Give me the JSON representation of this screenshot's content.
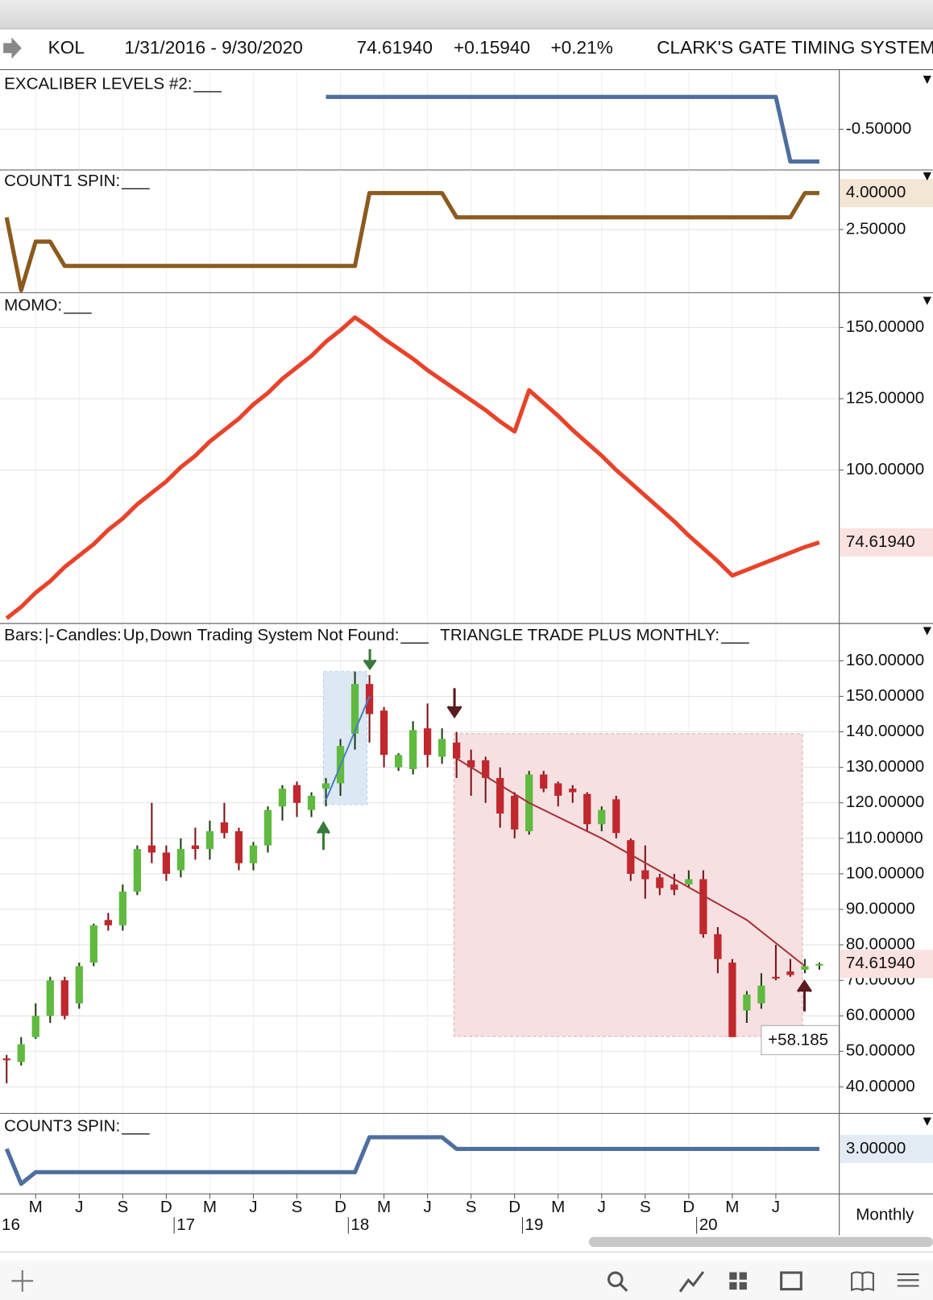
{
  "header": {
    "symbol": "KOL",
    "range": "1/31/2016 - 9/30/2020",
    "last": "74.61940",
    "change": "+0.15940",
    "change_pct": "+0.21%",
    "system": "CLARK'S GATE TIMING SYSTEM"
  },
  "chart_data": [
    {
      "type": "line",
      "title": "EXCALIBER LEVELS #2:",
      "series": [
        {
          "name": "___",
          "color": "#4e6f9e",
          "values": [
            null,
            null,
            null,
            null,
            null,
            null,
            null,
            null,
            null,
            null,
            null,
            null,
            null,
            null,
            null,
            null,
            null,
            null,
            null,
            null,
            null,
            null,
            0,
            0,
            0,
            0,
            0,
            0,
            0,
            0,
            0,
            0,
            0,
            0,
            0,
            0,
            0,
            0,
            0,
            0,
            0,
            0,
            0,
            0,
            0,
            0,
            0,
            0,
            0,
            0,
            0,
            0,
            0,
            0,
            -1,
            -1,
            -1
          ]
        }
      ],
      "ylim": [
        -1.13,
        0.37
      ],
      "yticks": [
        {
          "value": -0.5,
          "label": "-0.50000"
        }
      ]
    },
    {
      "type": "line",
      "title": "COUNT1 SPIN:",
      "series": [
        {
          "name": "___",
          "color": "#8b5a1e",
          "values": [
            3,
            0,
            2,
            2,
            1,
            1,
            1,
            1,
            1,
            1,
            1,
            1,
            1,
            1,
            1,
            1,
            1,
            1,
            1,
            1,
            1,
            1,
            1,
            1,
            1,
            4,
            4,
            4,
            4,
            4,
            4,
            3,
            3,
            3,
            3,
            3,
            3,
            3,
            3,
            3,
            3,
            3,
            3,
            3,
            3,
            3,
            3,
            3,
            3,
            3,
            3,
            3,
            3,
            3,
            3,
            4,
            4
          ]
        }
      ],
      "ylim": [
        -0.1,
        4.95
      ],
      "yticks": [
        {
          "value": 2.5,
          "label": "2.50000"
        }
      ],
      "last_value": {
        "value": 4,
        "label": "4.00000",
        "color": "#f4e6d4"
      }
    },
    {
      "type": "line",
      "title": "MOMO:",
      "series": [
        {
          "name": "___",
          "color": "#e8432a",
          "values": [
            48,
            52,
            57,
            61,
            66,
            70,
            74,
            79,
            83,
            88,
            92,
            96,
            101,
            105,
            110,
            114,
            118,
            123,
            127,
            132,
            136,
            140,
            145,
            149,
            153.5,
            150,
            146,
            142.5,
            139,
            135,
            131.5,
            128,
            124.5,
            121,
            117,
            113.5,
            128,
            123.5,
            119,
            114,
            109.5,
            105,
            100,
            95.5,
            91,
            86.5,
            82,
            77,
            72.5,
            68,
            63,
            65,
            67,
            69,
            71,
            73,
            74.6194
          ]
        }
      ],
      "ylim": [
        46.2,
        161.6
      ],
      "yticks": [
        {
          "value": 150,
          "label": "150.00000"
        },
        {
          "value": 125,
          "label": "125.00000"
        },
        {
          "value": 100,
          "label": "100.00000"
        }
      ],
      "last_value": {
        "value": 74.6194,
        "label": "74.61940",
        "color": "#fbe1df"
      }
    },
    {
      "type": "candlestick",
      "legend": [
        "Bars:",
        "|-",
        "Candles:",
        "Up",
        ",",
        "Down",
        "Trading System Not Found:",
        "___",
        "TRIANGLE TRADE PLUS MONTHLY:",
        "___"
      ],
      "up_color": "#5fba3f",
      "down_color": "#c0282d",
      "open": [
        48,
        47,
        54,
        60,
        70,
        63.5,
        75,
        87,
        85.5,
        95,
        108,
        106,
        101,
        108,
        107,
        114.5,
        112,
        103,
        108,
        119,
        125,
        118,
        124,
        125.5,
        139.5,
        153.5,
        146,
        130,
        129.5,
        141,
        133,
        137,
        132,
        132,
        127,
        122,
        112,
        128,
        125.5,
        124,
        122.5,
        114,
        121,
        109.5,
        101,
        99,
        97,
        97,
        98.5,
        83,
        75,
        61.5,
        63.5,
        71,
        72.5,
        73,
        74.5
      ],
      "high": [
        49,
        54,
        63.5,
        71,
        71,
        75,
        86,
        89,
        97,
        108,
        120,
        108,
        110,
        113,
        115,
        120,
        113,
        109,
        119,
        125,
        126,
        123,
        127,
        138,
        157,
        156,
        147,
        134,
        143,
        148,
        141,
        140,
        135,
        133,
        130,
        123,
        129,
        129,
        126,
        125,
        123,
        119,
        122,
        110,
        108,
        100,
        100,
        101,
        101,
        85,
        76,
        67,
        72,
        80,
        76,
        76,
        75
      ],
      "low": [
        41,
        46,
        53.5,
        58,
        59,
        62,
        74,
        84,
        84,
        94,
        103,
        98,
        99,
        104,
        104,
        110,
        101,
        101,
        106,
        115,
        116,
        116,
        119,
        122,
        135,
        137,
        130,
        129,
        128,
        130,
        131,
        127,
        122,
        120,
        113,
        110,
        111,
        123,
        119,
        120,
        112,
        112,
        110,
        98,
        93,
        94,
        94,
        96,
        82,
        72,
        54,
        58,
        62,
        70,
        71,
        72,
        73
      ],
      "close": [
        47.5,
        52,
        60,
        70,
        60,
        74,
        85.5,
        85.5,
        95,
        107,
        106,
        100,
        107,
        107,
        112,
        111.5,
        103,
        108,
        118,
        124,
        120,
        122,
        125.5,
        136,
        153.5,
        145,
        133.5,
        133.5,
        140.5,
        133.5,
        138,
        132.5,
        130,
        127,
        117,
        112.5,
        128,
        124,
        122,
        123,
        114,
        118,
        111.5,
        100,
        98.5,
        96,
        95.5,
        98.5,
        83,
        76,
        54,
        66,
        68.5,
        70.5,
        71.5,
        74,
        74.6194
      ],
      "zones": [
        {
          "from": 22,
          "to": 25,
          "high": 157,
          "low": 119.5,
          "color": "#dde8f5"
        },
        {
          "from": 31,
          "to": 55,
          "high": 139.5,
          "low": 54.2,
          "color": "#f6e0e2",
          "label": "+58.185"
        }
      ],
      "overlays": [
        {
          "color": "#4a7fc0",
          "x": [
            22,
            25
          ],
          "values": [
            120.8,
            150
          ]
        },
        {
          "color": "#a83238",
          "x": [
            31,
            36,
            41,
            46,
            51,
            55
          ],
          "values": [
            132.5,
            120,
            110,
            98.5,
            87,
            74
          ]
        }
      ],
      "ylim": [
        32.5,
        170.3
      ],
      "yticks": [
        {
          "value": 160,
          "label": "160.00000"
        },
        {
          "value": 150,
          "label": "150.00000"
        },
        {
          "value": 140,
          "label": "140.00000"
        },
        {
          "value": 130,
          "label": "130.00000"
        },
        {
          "value": 120,
          "label": "120.00000"
        },
        {
          "value": 110,
          "label": "110.00000"
        },
        {
          "value": 100,
          "label": "100.00000"
        },
        {
          "value": 90,
          "label": "90.00000"
        },
        {
          "value": 80,
          "label": "80.00000"
        },
        {
          "value": 70,
          "label": "70.00000"
        },
        {
          "value": 60,
          "label": "60.00000"
        },
        {
          "value": 50,
          "label": "50.00000"
        },
        {
          "value": 40,
          "label": "40.00000"
        }
      ],
      "last_value": {
        "value": 74.6194,
        "label": "74.61940",
        "color": "#fbe1df"
      }
    },
    {
      "type": "line",
      "title": "COUNT3 SPIN:",
      "series": [
        {
          "name": "___",
          "color": "#4e6f9e",
          "values": [
            3,
            0,
            1,
            1,
            1,
            1,
            1,
            1,
            1,
            1,
            1,
            1,
            1,
            1,
            1,
            1,
            1,
            1,
            1,
            1,
            1,
            1,
            1,
            1,
            1,
            4,
            4,
            4,
            4,
            4,
            4,
            3,
            3,
            3,
            3,
            3,
            3,
            3,
            3,
            3,
            3,
            3,
            3,
            3,
            3,
            3,
            3,
            3,
            3,
            3,
            3,
            3,
            3,
            3,
            3,
            3,
            3
          ]
        }
      ],
      "ylim": [
        -0.86,
        5.9
      ],
      "yticks": [],
      "last_value": {
        "value": 3,
        "label": "3.00000",
        "color": "#e3ebf5"
      }
    }
  ],
  "x_axis": {
    "xticks": [
      {
        "value": 2,
        "label": "M"
      },
      {
        "value": 5,
        "label": "J"
      },
      {
        "value": 8,
        "label": "S"
      },
      {
        "value": 11,
        "label": "D"
      },
      {
        "value": 14,
        "label": "M"
      },
      {
        "value": 17,
        "label": "J"
      },
      {
        "value": 20,
        "label": "S"
      },
      {
        "value": 23,
        "label": "D"
      },
      {
        "value": 26,
        "label": "M"
      },
      {
        "value": 29,
        "label": "J"
      },
      {
        "value": 32,
        "label": "S"
      },
      {
        "value": 35,
        "label": "D"
      },
      {
        "value": 38,
        "label": "M"
      },
      {
        "value": 41,
        "label": "J"
      },
      {
        "value": 44,
        "label": "S"
      },
      {
        "value": 47,
        "label": "D"
      },
      {
        "value": 50,
        "label": "M"
      },
      {
        "value": 53,
        "label": "J"
      }
    ],
    "years": [
      {
        "value": 0,
        "label": "16"
      },
      {
        "value": 12,
        "label": "17"
      },
      {
        "value": 24,
        "label": "18"
      },
      {
        "value": 36,
        "label": "19"
      },
      {
        "value": 48,
        "label": "20"
      }
    ]
  },
  "toolbar": {
    "period": "Monthly"
  }
}
